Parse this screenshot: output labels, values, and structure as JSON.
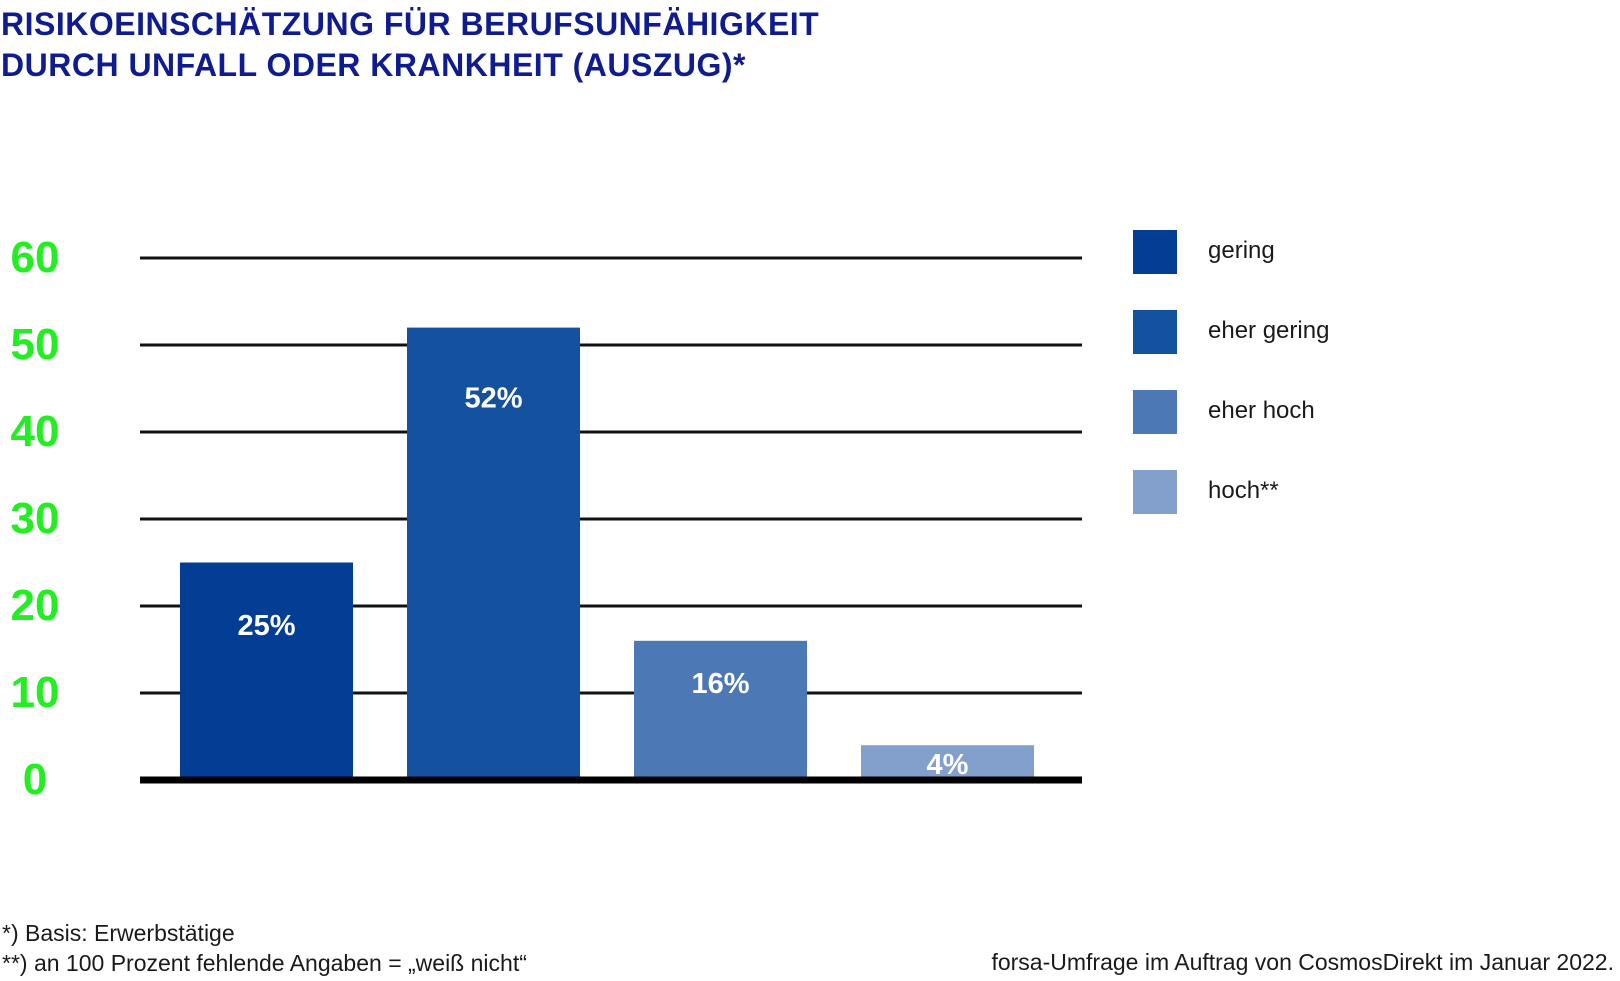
{
  "title_lines": [
    "RISIKOEINSCHÄTZUNG FÜR BERUFSUNFÄHIGKEIT",
    "DURCH UNFALL ODER KRANKHEIT (AUSZUG)*"
  ],
  "footnotes": [
    "*) Basis: Erwerbstätige",
    "**) an 100 Prozent fehlende Angaben = „weiß nicht“"
  ],
  "source": "forsa-Umfrage im Auftrag von CosmosDirekt im Januar 2022.",
  "colors": {
    "title": "#0f1c8f",
    "axis_ticks": "#22ee22",
    "gridline": "#111111",
    "bar_label": "#ffffff"
  },
  "chart_data": {
    "type": "bar",
    "categories": [
      "gering",
      "eher gering",
      "eher hoch",
      "hoch**"
    ],
    "values": [
      25,
      52,
      16,
      4
    ],
    "data_labels": [
      "25%",
      "52%",
      "16%",
      "4%"
    ],
    "bar_colors": [
      "#033d94",
      "#14519f",
      "#4d78b6",
      "#82a0cb"
    ],
    "ylim": [
      0,
      60
    ],
    "yticks": [
      0,
      10,
      20,
      30,
      40,
      50,
      60
    ],
    "grid": true,
    "legend": {
      "placement": "right",
      "entries": [
        "gering",
        "eher gering",
        "eher hoch",
        "hoch**"
      ]
    }
  }
}
